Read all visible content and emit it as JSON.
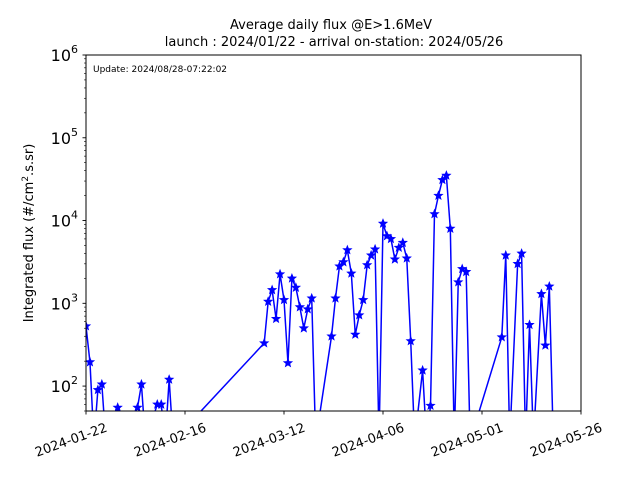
{
  "chart_data": {
    "type": "line",
    "title_line1": "Average daily flux @E>1.6MeV",
    "title_line2": "launch : 2024/01/22 - arrival on-station: 2024/05/26",
    "annotation": "Update: 2024/08/28-07:22:02",
    "ylabel": "Integrated flux (#/cm$^2$.s.sr)",
    "ylabel_parts": [
      "Integrated flux (#/cm",
      "2",
      ".s.sr)"
    ],
    "xlabel": "",
    "yscale": "log",
    "ylim": [
      50,
      1000000
    ],
    "xlim": [
      "2024-01-22",
      "2024-05-26"
    ],
    "x_ticks": [
      "2024-01-22",
      "2024-02-16",
      "2024-03-12",
      "2024-04-06",
      "2024-05-01",
      "2024-05-26"
    ],
    "y_ticks": [
      {
        "base": "10",
        "exp": "2",
        "value": 100
      },
      {
        "base": "10",
        "exp": "3",
        "value": 1000
      },
      {
        "base": "10",
        "exp": "4",
        "value": 10000
      },
      {
        "base": "10",
        "exp": "5",
        "value": 100000
      },
      {
        "base": "10",
        "exp": "6",
        "value": 1000000
      }
    ],
    "series_color": "#0000ff",
    "marker": "star",
    "series": [
      {
        "name": "",
        "values": [
          [
            "2024-01-22",
            530
          ],
          [
            "2024-01-23",
            195
          ],
          [
            "2024-01-24",
            null
          ],
          [
            "2024-01-25",
            90
          ],
          [
            "2024-01-26",
            105
          ],
          [
            "2024-01-27",
            null
          ],
          [
            "2024-01-30",
            55
          ],
          [
            "2024-01-31",
            null
          ],
          [
            "2024-02-04",
            55
          ],
          [
            "2024-02-05",
            105
          ],
          [
            "2024-02-06",
            null
          ],
          [
            "2024-02-09",
            60
          ],
          [
            "2024-02-10",
            60
          ],
          [
            "2024-02-11",
            null
          ],
          [
            "2024-02-12",
            120
          ],
          [
            "2024-02-13",
            null
          ],
          [
            "2024-03-07",
            330
          ],
          [
            "2024-03-08",
            1050
          ],
          [
            "2024-03-09",
            1450
          ],
          [
            "2024-03-10",
            650
          ],
          [
            "2024-03-11",
            2250
          ],
          [
            "2024-03-12",
            1100
          ],
          [
            "2024-03-13",
            190
          ],
          [
            "2024-03-14",
            2000
          ],
          [
            "2024-03-15",
            1550
          ],
          [
            "2024-03-16",
            900
          ],
          [
            "2024-03-17",
            500
          ],
          [
            "2024-03-18",
            850
          ],
          [
            "2024-03-19",
            1150
          ],
          [
            "2024-03-20",
            null
          ],
          [
            "2024-03-24",
            400
          ],
          [
            "2024-03-25",
            1150
          ],
          [
            "2024-03-26",
            2800
          ],
          [
            "2024-03-27",
            3150
          ],
          [
            "2024-03-28",
            4400
          ],
          [
            "2024-03-29",
            2300
          ],
          [
            "2024-03-30",
            420
          ],
          [
            "2024-03-31",
            720
          ],
          [
            "2024-04-01",
            1100
          ],
          [
            "2024-04-02",
            2900
          ],
          [
            "2024-04-03",
            3800
          ],
          [
            "2024-04-04",
            4500
          ],
          [
            "2024-04-05",
            null
          ],
          [
            "2024-04-06",
            9200
          ],
          [
            "2024-04-07",
            6500
          ],
          [
            "2024-04-08",
            6000
          ],
          [
            "2024-04-09",
            3400
          ],
          [
            "2024-04-10",
            4700
          ],
          [
            "2024-04-11",
            5400
          ],
          [
            "2024-04-12",
            3500
          ],
          [
            "2024-04-13",
            350
          ],
          [
            "2024-04-14",
            null
          ],
          [
            "2024-04-16",
            155
          ],
          [
            "2024-04-17",
            null
          ],
          [
            "2024-04-18",
            58
          ],
          [
            "2024-04-19",
            12000
          ],
          [
            "2024-04-20",
            20000
          ],
          [
            "2024-04-21",
            31000
          ],
          [
            "2024-04-22",
            35000
          ],
          [
            "2024-04-23",
            8000
          ],
          [
            "2024-04-24",
            null
          ],
          [
            "2024-04-25",
            1800
          ],
          [
            "2024-04-26",
            2600
          ],
          [
            "2024-04-27",
            2400
          ],
          [
            "2024-04-28",
            null
          ],
          [
            "2024-05-06",
            390
          ],
          [
            "2024-05-07",
            3800
          ],
          [
            "2024-05-08",
            null
          ],
          [
            "2024-05-10",
            3000
          ],
          [
            "2024-05-11",
            4000
          ],
          [
            "2024-05-12",
            null
          ],
          [
            "2024-05-13",
            550
          ],
          [
            "2024-05-14",
            null
          ],
          [
            "2024-05-16",
            1300
          ],
          [
            "2024-05-17",
            310
          ],
          [
            "2024-05-18",
            1600
          ],
          [
            "2024-05-19",
            null
          ]
        ]
      }
    ]
  }
}
